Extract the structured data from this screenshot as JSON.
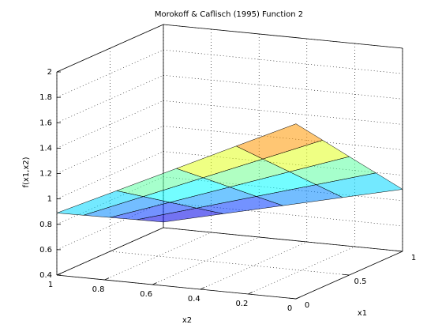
{
  "chart_data": {
    "type": "surface",
    "title": "Morokoff & Caflisch (1995) Function 2",
    "x_label": "x1",
    "y_label": "x2",
    "z_label": "f(x1,x2)",
    "x": [
      0,
      0.25,
      0.5,
      0.75,
      1
    ],
    "y": [
      0,
      0.25,
      0.5,
      0.75,
      1
    ],
    "z": [
      [
        1.778,
        1.556,
        1.333,
        1.111,
        0.889
      ],
      [
        1.556,
        1.361,
        1.167,
        0.972,
        0.778
      ],
      [
        1.333,
        1.167,
        1.0,
        0.833,
        0.667
      ],
      [
        1.111,
        0.972,
        0.833,
        0.694,
        0.556
      ],
      [
        0.889,
        0.778,
        0.667,
        0.556,
        0.444
      ]
    ],
    "xlim": [
      0,
      1
    ],
    "xticks": [
      0,
      0.5,
      1
    ],
    "ylim": [
      0,
      1
    ],
    "yticks": [
      0,
      0.2,
      0.4,
      0.6,
      0.8,
      1
    ],
    "zlim": [
      0.4,
      2
    ],
    "zticks": [
      0.4,
      0.6,
      0.8,
      1,
      1.2,
      1.4,
      1.6,
      1.8,
      2
    ],
    "grid": true,
    "edge_color": "#000000"
  }
}
